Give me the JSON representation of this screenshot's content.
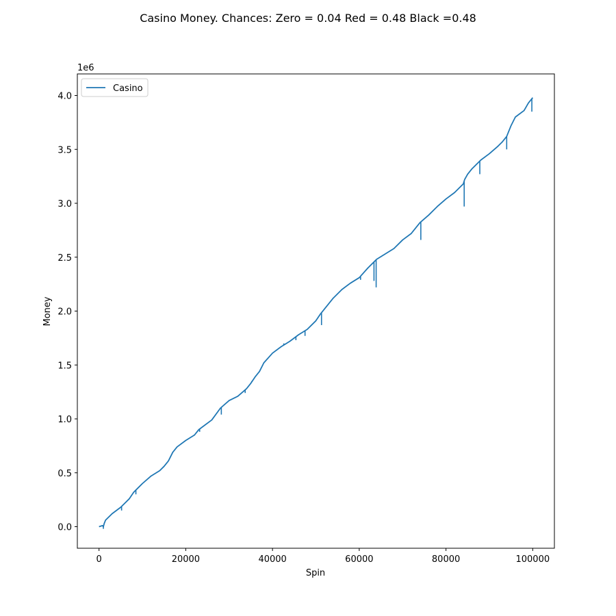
{
  "chart_data": {
    "type": "line",
    "title": "Casino Money. Chances: Zero = 0.04  Red = 0.48  Black =0.48",
    "xlabel": "Spin",
    "ylabel": "Money",
    "y_offset_label": "1e6",
    "xlim": [
      -5000,
      105000
    ],
    "ylim": [
      -0.2,
      4.2
    ],
    "x_ticks": [
      0,
      20000,
      40000,
      60000,
      80000,
      100000
    ],
    "x_tick_labels": [
      "0",
      "20000",
      "40000",
      "60000",
      "80000",
      "100000"
    ],
    "y_ticks": [
      0.0,
      0.5,
      1.0,
      1.5,
      2.0,
      2.5,
      3.0,
      3.5,
      4.0
    ],
    "y_tick_labels": [
      "0.0",
      "0.5",
      "1.0",
      "1.5",
      "2.0",
      "2.5",
      "3.0",
      "3.5",
      "4.0"
    ],
    "grid": false,
    "legend_position": "top-left",
    "series": [
      {
        "name": "Casino",
        "color": "#1f77b4",
        "x": [
          0,
          800,
          1000,
          1200,
          1500,
          2000,
          3000,
          4000,
          5000,
          6000,
          7000,
          8000,
          9000,
          10000,
          12000,
          14000,
          15000,
          16000,
          17000,
          18000,
          20000,
          22000,
          23000,
          24000,
          26000,
          28000,
          30000,
          32000,
          34000,
          35000,
          36000,
          37000,
          38000,
          40000,
          42000,
          44000,
          46000,
          48000,
          50000,
          51000,
          52000,
          54000,
          56000,
          58000,
          60000,
          62000,
          63500,
          64000,
          66000,
          68000,
          70000,
          72000,
          74000,
          76000,
          78000,
          80000,
          82000,
          84000,
          84300,
          85000,
          86000,
          88000,
          90000,
          92000,
          93000,
          94000,
          95000,
          96000,
          98000,
          99000,
          100000
        ],
        "y": [
          0.0,
          0.01,
          0.0,
          0.03,
          0.06,
          0.08,
          0.12,
          0.15,
          0.18,
          0.22,
          0.26,
          0.32,
          0.36,
          0.4,
          0.47,
          0.52,
          0.56,
          0.61,
          0.69,
          0.74,
          0.8,
          0.85,
          0.9,
          0.93,
          0.99,
          1.1,
          1.17,
          1.21,
          1.28,
          1.33,
          1.39,
          1.44,
          1.52,
          1.61,
          1.67,
          1.72,
          1.78,
          1.83,
          1.91,
          1.97,
          2.02,
          2.12,
          2.2,
          2.26,
          2.31,
          2.4,
          2.46,
          2.48,
          2.53,
          2.58,
          2.66,
          2.72,
          2.82,
          2.89,
          2.97,
          3.04,
          3.1,
          3.18,
          3.22,
          3.27,
          3.32,
          3.4,
          3.46,
          3.53,
          3.57,
          3.62,
          3.72,
          3.8,
          3.86,
          3.93,
          3.98
        ]
      }
    ],
    "spikes": [
      {
        "x": 1000,
        "y": -0.02
      },
      {
        "x": 5200,
        "y": 0.15
      },
      {
        "x": 8500,
        "y": 0.3
      },
      {
        "x": 23200,
        "y": 0.88
      },
      {
        "x": 28200,
        "y": 1.04
      },
      {
        "x": 33700,
        "y": 1.24
      },
      {
        "x": 35200,
        "y": 1.35
      },
      {
        "x": 42600,
        "y": 1.7
      },
      {
        "x": 45400,
        "y": 1.73
      },
      {
        "x": 47500,
        "y": 1.77
      },
      {
        "x": 51300,
        "y": 1.87
      },
      {
        "x": 60300,
        "y": 2.29
      },
      {
        "x": 63400,
        "y": 2.28
      },
      {
        "x": 63900,
        "y": 2.22
      },
      {
        "x": 67200,
        "y": 2.56
      },
      {
        "x": 68500,
        "y": 2.6
      },
      {
        "x": 74200,
        "y": 2.66
      },
      {
        "x": 84200,
        "y": 2.97
      },
      {
        "x": 87800,
        "y": 3.27
      },
      {
        "x": 94000,
        "y": 3.5
      },
      {
        "x": 99800,
        "y": 3.85
      }
    ]
  }
}
